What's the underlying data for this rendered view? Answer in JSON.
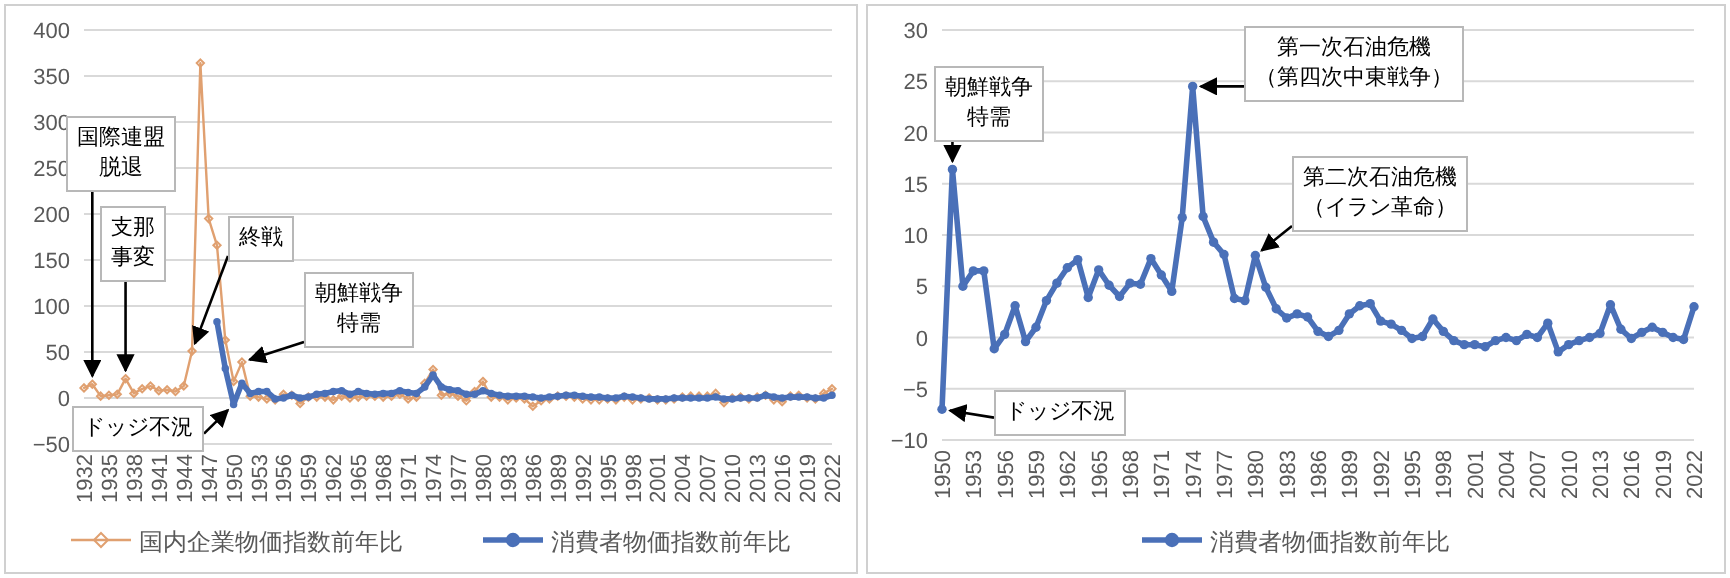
{
  "chart_data": [
    {
      "type": "line",
      "xlim": [
        1932,
        2022
      ],
      "xticks": [
        1932,
        1935,
        1938,
        1941,
        1944,
        1947,
        1950,
        1953,
        1956,
        1959,
        1962,
        1965,
        1968,
        1971,
        1974,
        1977,
        1980,
        1983,
        1986,
        1989,
        1992,
        1995,
        1998,
        2001,
        2004,
        2007,
        2010,
        2013,
        2016,
        2019,
        2022
      ],
      "ylim": [
        -50,
        400
      ],
      "yticks": [
        -50,
        0,
        50,
        100,
        150,
        200,
        250,
        300,
        350,
        400
      ],
      "grid": "y",
      "legend": "bottom",
      "series": [
        {
          "name": "国内企業物価指数前年比",
          "color": "#e0a070",
          "marker": "diamond",
          "x": [
            1932,
            1933,
            1934,
            1935,
            1936,
            1937,
            1938,
            1939,
            1940,
            1941,
            1942,
            1943,
            1944,
            1945,
            1946,
            1947,
            1948,
            1949,
            1950,
            1951,
            1952,
            1953,
            1954,
            1955,
            1956,
            1957,
            1958,
            1959,
            1960,
            1961,
            1962,
            1963,
            1964,
            1965,
            1966,
            1967,
            1968,
            1969,
            1970,
            1971,
            1972,
            1973,
            1974,
            1975,
            1976,
            1977,
            1978,
            1979,
            1980,
            1981,
            1982,
            1983,
            1984,
            1985,
            1986,
            1987,
            1988,
            1989,
            1990,
            1991,
            1992,
            1993,
            1994,
            1995,
            1996,
            1997,
            1998,
            1999,
            2000,
            2001,
            2002,
            2003,
            2004,
            2005,
            2006,
            2007,
            2008,
            2009,
            2010,
            2011,
            2012,
            2013,
            2014,
            2015,
            2016,
            2017,
            2018,
            2019,
            2020,
            2021,
            2022
          ],
          "values": [
            11,
            15,
            2,
            3,
            4,
            21,
            5,
            10,
            13,
            8,
            9,
            7,
            13,
            51,
            364,
            195,
            166,
            63,
            18,
            39,
            2,
            1,
            -1,
            -2,
            4,
            3,
            -6,
            1,
            1,
            1,
            -2,
            2,
            0,
            1,
            2,
            2,
            1,
            2,
            4,
            -1,
            1,
            16,
            31,
            3,
            5,
            2,
            -3,
            7,
            18,
            1,
            1,
            -2,
            0,
            -1,
            -9,
            -3,
            -1,
            2,
            2,
            1,
            -1,
            -2,
            -2,
            -1,
            -2,
            1,
            -2,
            -1,
            0,
            -2,
            -2,
            -1,
            1,
            2,
            2,
            2,
            5,
            -5,
            0,
            1,
            -1,
            1,
            3,
            -2,
            -4,
            2,
            3,
            0,
            -1,
            5,
            10
          ]
        },
        {
          "name": "消費者物価指数前年比",
          "color": "#4a70b8",
          "marker": "circle",
          "x": [
            1948,
            1949,
            1950,
            1951,
            1952,
            1953,
            1954,
            1955,
            1956,
            1957,
            1958,
            1959,
            1960,
            1961,
            1962,
            1963,
            1964,
            1965,
            1966,
            1967,
            1968,
            1969,
            1970,
            1971,
            1972,
            1973,
            1974,
            1975,
            1976,
            1977,
            1978,
            1979,
            1980,
            1981,
            1982,
            1983,
            1984,
            1985,
            1986,
            1987,
            1988,
            1989,
            1990,
            1991,
            1992,
            1993,
            1994,
            1995,
            1996,
            1997,
            1998,
            1999,
            2000,
            2001,
            2002,
            2003,
            2004,
            2005,
            2006,
            2007,
            2008,
            2009,
            2010,
            2011,
            2012,
            2013,
            2014,
            2015,
            2016,
            2017,
            2018,
            2019,
            2020,
            2021,
            2022
          ],
          "values": [
            83,
            32,
            -7,
            16,
            5,
            7,
            7,
            -1,
            0,
            3,
            0,
            1,
            4,
            5,
            7,
            8,
            4,
            7,
            5,
            4,
            5,
            5,
            8,
            6,
            5,
            12,
            25,
            12,
            9,
            8,
            4,
            4,
            8,
            5,
            3,
            2,
            2,
            2,
            1,
            0,
            1,
            2,
            3,
            3,
            2,
            1,
            1,
            0,
            0,
            2,
            1,
            0,
            -1,
            -1,
            -1,
            0,
            0,
            0,
            0,
            0,
            1,
            -1,
            -1,
            0,
            0,
            0,
            3,
            1,
            0,
            1,
            1,
            1,
            0,
            0,
            3
          ]
        }
      ],
      "annotations": [
        {
          "text": "国際連盟脱退",
          "x": 1933,
          "y": 15
        },
        {
          "text": "支那事変",
          "x": 1937,
          "y": 21
        },
        {
          "text": "終戦",
          "x": 1945,
          "y": 51
        },
        {
          "text": "朝鮮戦争特需",
          "x": 1951,
          "y": 39
        },
        {
          "text": "ドッジ不況",
          "x": 1950,
          "y": -7
        }
      ]
    },
    {
      "type": "line",
      "xlim": [
        1950,
        2022
      ],
      "xticks": [
        1950,
        1953,
        1956,
        1959,
        1962,
        1965,
        1968,
        1971,
        1974,
        1977,
        1980,
        1983,
        1986,
        1989,
        1992,
        1995,
        1998,
        2001,
        2004,
        2007,
        2010,
        2013,
        2016,
        2019,
        2022
      ],
      "ylim": [
        -10,
        30
      ],
      "yticks": [
        -10,
        -5,
        0,
        5,
        10,
        15,
        20,
        25,
        30
      ],
      "grid": "y",
      "legend": "bottom",
      "series": [
        {
          "name": "消費者物価指数前年比",
          "color": "#4a70b8",
          "marker": "circle",
          "x": [
            1950,
            1951,
            1952,
            1953,
            1954,
            1955,
            1956,
            1957,
            1958,
            1959,
            1960,
            1961,
            1962,
            1963,
            1964,
            1965,
            1966,
            1967,
            1968,
            1969,
            1970,
            1971,
            1972,
            1973,
            1974,
            1975,
            1976,
            1977,
            1978,
            1979,
            1980,
            1981,
            1982,
            1983,
            1984,
            1985,
            1986,
            1987,
            1988,
            1989,
            1990,
            1991,
            1992,
            1993,
            1994,
            1995,
            1996,
            1997,
            1998,
            1999,
            2000,
            2001,
            2002,
            2003,
            2004,
            2005,
            2006,
            2007,
            2008,
            2009,
            2010,
            2011,
            2012,
            2013,
            2014,
            2015,
            2016,
            2017,
            2018,
            2019,
            2020,
            2021,
            2022
          ],
          "values": [
            -7.0,
            16.4,
            5.0,
            6.5,
            6.5,
            -1.1,
            0.3,
            3.1,
            -0.4,
            1.0,
            3.6,
            5.3,
            6.8,
            7.6,
            3.9,
            6.6,
            5.1,
            4.0,
            5.3,
            5.2,
            7.7,
            6.1,
            4.5,
            11.7,
            24.5,
            11.8,
            9.3,
            8.1,
            3.8,
            3.6,
            8.0,
            4.9,
            2.8,
            1.9,
            2.3,
            2.0,
            0.6,
            0.1,
            0.7,
            2.3,
            3.1,
            3.3,
            1.6,
            1.3,
            0.7,
            -0.1,
            0.1,
            1.8,
            0.6,
            -0.3,
            -0.7,
            -0.7,
            -0.9,
            -0.3,
            0.0,
            -0.3,
            0.3,
            0.0,
            1.4,
            -1.4,
            -0.7,
            -0.3,
            0.0,
            0.4,
            3.2,
            0.8,
            -0.1,
            0.5,
            1.0,
            0.5,
            0.0,
            -0.2,
            3.0
          ]
        }
      ],
      "annotations": [
        {
          "text": "朝鮮戦争特需",
          "x": 1951,
          "y": 16.4
        },
        {
          "text": "第一次石油危機（第四次中東戦争）",
          "x": 1974,
          "y": 24.5
        },
        {
          "text": "第二次石油危機（イラン革命）",
          "x": 1980,
          "y": 8.0
        },
        {
          "text": "ドッジ不況",
          "x": 1950,
          "y": -7.0
        }
      ]
    }
  ]
}
